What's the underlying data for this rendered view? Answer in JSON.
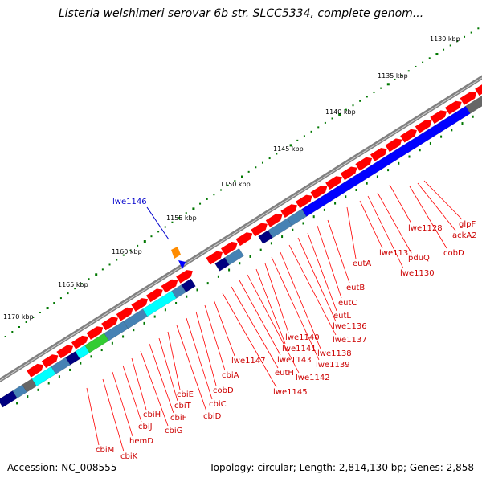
{
  "title": "Listeria welshimeri serovar 6b str. SLCC5334, complete genom...",
  "footer": {
    "accession": "Accession: NC_008555",
    "summary": "Topology: circular; Length: 2,814,130 bp; Genes: 2,858"
  },
  "colors": {
    "backbone": "#808080",
    "gene_arrow": "#ff0000",
    "cds_blue": "#0000ff",
    "cds_cyan": "#00ffff",
    "cds_steel": "#4682b4",
    "cds_navy": "#000080",
    "cds_green": "#33cc33",
    "gray_block": "#666666",
    "tick_green": "#007700",
    "highlight_gene": "#ff8c00",
    "label_red": "#cc0000",
    "label_blue": "#0000cc"
  },
  "scale_labels": [
    "1130 kbp",
    "1135 kbp",
    "1140 kbp",
    "1145 kbp",
    "1150 kbp",
    "1155 kbp",
    "1160 kbp",
    "1165 kbp",
    "1170 kbp"
  ],
  "highlight_label": "lwe1146",
  "gene_labels": [
    "glpF",
    "ackA2",
    "cobD",
    "lwe1128",
    "pduQ",
    "lwe1130",
    "lwe1131",
    "eutA",
    "eutB",
    "eutC",
    "eutL",
    "lwe1136",
    "lwe1137",
    "lwe1138",
    "lwe1139",
    "lwe1140",
    "lwe1141",
    "lwe1142",
    "lwe1143",
    "eutH",
    "lwe1145",
    "lwe1147",
    "cbiA",
    "cobD",
    "cbiC",
    "cbiD",
    "cbiE",
    "cbiT",
    "cbiF",
    "cbiG",
    "cbiH",
    "cbiJ",
    "hemD",
    "cbiK",
    "cbiM"
  ]
}
